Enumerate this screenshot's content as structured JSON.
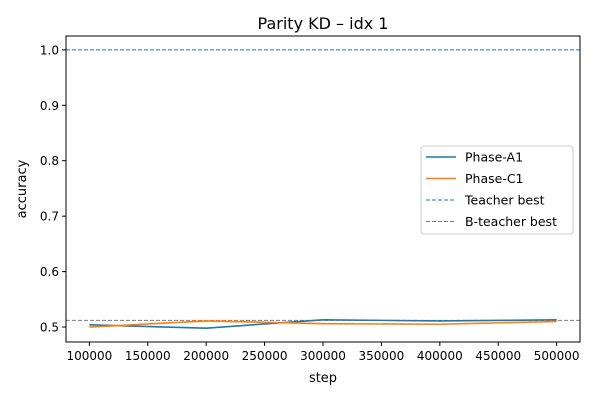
{
  "chart_data": {
    "type": "line",
    "title": "Parity KD – idx 1",
    "xlabel": "step",
    "ylabel": "accuracy",
    "xlim": [
      80000,
      520000
    ],
    "ylim": [
      0.473,
      1.025
    ],
    "x_ticks": [
      100000,
      150000,
      200000,
      250000,
      300000,
      350000,
      400000,
      450000,
      500000
    ],
    "y_ticks": [
      0.5,
      0.6,
      0.7,
      0.8,
      0.9,
      1.0
    ],
    "x_tick_labels": [
      "100000",
      "150000",
      "200000",
      "250000",
      "300000",
      "350000",
      "400000",
      "450000",
      "500000"
    ],
    "y_tick_labels": [
      "0.5",
      "0.6",
      "0.7",
      "0.8",
      "0.9",
      "1.0"
    ],
    "grid": false,
    "legend_position": "center-right",
    "series": [
      {
        "name": "Phase-A1",
        "x": [
          100000,
          200000,
          300000,
          400000,
          500000
        ],
        "values": [
          0.504,
          0.498,
          0.513,
          0.511,
          0.513
        ],
        "color": "#1f77b4",
        "style": "solid"
      },
      {
        "name": "Phase-C1",
        "x": [
          100000,
          200000,
          300000,
          400000,
          500000
        ],
        "values": [
          0.5,
          0.511,
          0.506,
          0.505,
          0.51
        ],
        "color": "#ff7f0e",
        "style": "solid"
      }
    ],
    "reference_lines": [
      {
        "name": "Teacher best",
        "value": 1.0,
        "color": "#1f77b4",
        "style": "dashed"
      },
      {
        "name": "B-teacher best",
        "value": 0.512,
        "color": "#7f7f7f",
        "style": "dashed"
      }
    ]
  }
}
